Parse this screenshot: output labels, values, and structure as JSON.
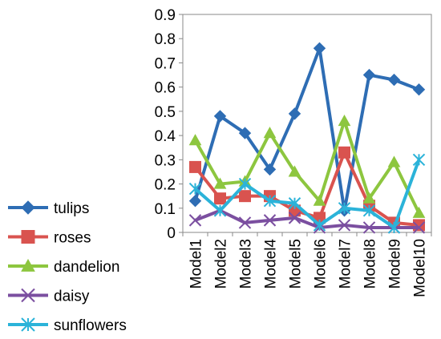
{
  "chart_data": {
    "type": "line",
    "title": "",
    "xlabel": "",
    "ylabel": "",
    "categories": [
      "Model1",
      "Model2",
      "Model3",
      "Model4",
      "Model5",
      "Model6",
      "Model7",
      "Model8",
      "Model9",
      "Model10"
    ],
    "ylim": [
      0,
      0.9
    ],
    "yticks": [
      "0",
      "0.1",
      "0.2",
      "0.3",
      "0.4",
      "0.5",
      "0.6",
      "0.7",
      "0.8",
      "0.9"
    ],
    "grid": false,
    "legend_position": "left",
    "series": [
      {
        "name": "tulips",
        "color": "#2E6DB4",
        "marker": "diamond",
        "values": [
          0.13,
          0.48,
          0.41,
          0.26,
          0.49,
          0.76,
          0.09,
          0.65,
          0.63,
          0.59
        ]
      },
      {
        "name": "roses",
        "color": "#D9534F",
        "marker": "square",
        "values": [
          0.27,
          0.14,
          0.15,
          0.15,
          0.09,
          0.06,
          0.33,
          0.11,
          0.04,
          0.03
        ]
      },
      {
        "name": "dandelion",
        "color": "#8DC63F",
        "marker": "triangle",
        "values": [
          0.38,
          0.2,
          0.21,
          0.41,
          0.25,
          0.13,
          0.46,
          0.14,
          0.29,
          0.08
        ]
      },
      {
        "name": "daisy",
        "color": "#7B4FA0",
        "marker": "x",
        "values": [
          0.05,
          0.09,
          0.04,
          0.05,
          0.06,
          0.02,
          0.03,
          0.02,
          0.02,
          0.02
        ]
      },
      {
        "name": "sunflowers",
        "color": "#2BB3D9",
        "marker": "asterisk",
        "values": [
          0.18,
          0.09,
          0.2,
          0.13,
          0.12,
          0.03,
          0.1,
          0.09,
          0.02,
          0.3
        ]
      }
    ]
  }
}
